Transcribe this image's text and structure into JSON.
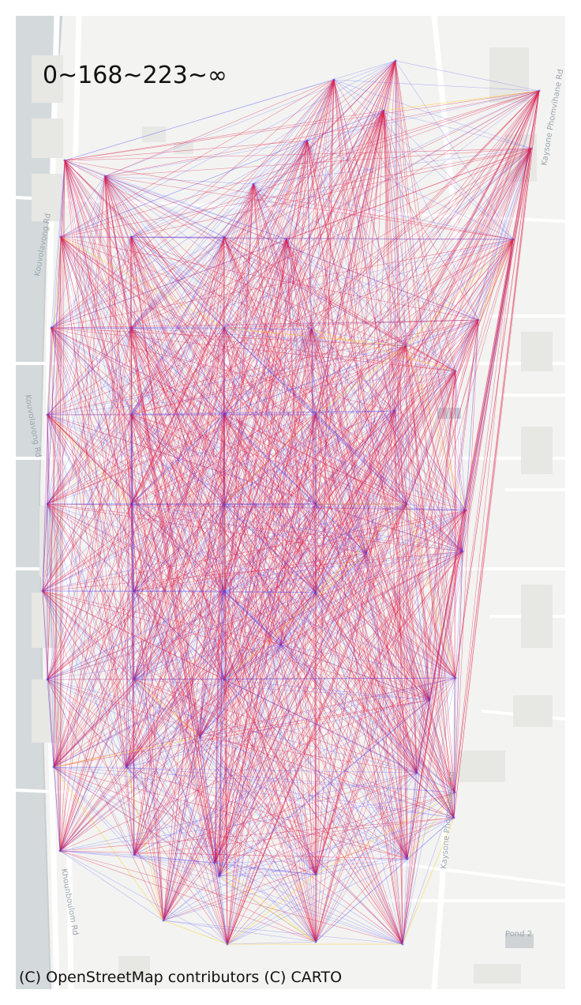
{
  "legend_title": "0~168~223~∞",
  "attribution": "(C) OpenStreetMap contributors (C) CARTO",
  "basemap": {
    "street_labels": [
      "Kouvolavong Rd",
      "Kouvolavong Rd",
      "Khounboulom Rd",
      "Kaysone Phomvihane Rd",
      "Kaysone Phomvihane Rd",
      "Pond 2"
    ],
    "water_color": "#d4dadc",
    "land_color": "#f3f3f1",
    "road_color": "#ffffff"
  },
  "colors": {
    "low": "#3b3bff",
    "mid": "#e0204a",
    "high": "#ffcc00"
  },
  "network": {
    "bins": [
      "0~168",
      "168~223",
      "223~∞"
    ],
    "node_count": 68,
    "description_levels": [
      "low",
      "mid",
      "high"
    ]
  }
}
